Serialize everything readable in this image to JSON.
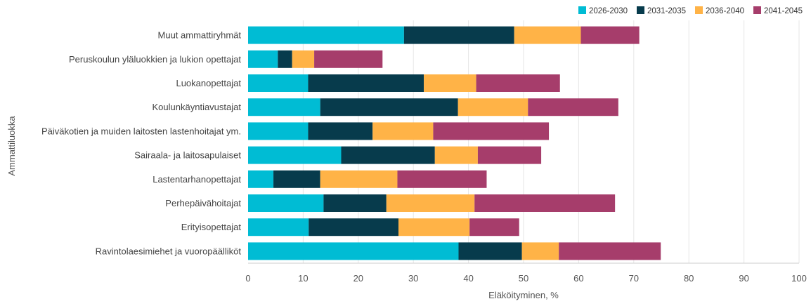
{
  "chart_data": {
    "type": "bar",
    "orientation": "horizontal",
    "stacked": true,
    "xlabel": "Eläköityminen, %",
    "ylabel": "Ammattiluokka",
    "xlim": [
      0,
      100
    ],
    "xticks": [
      0,
      10,
      20,
      30,
      40,
      50,
      60,
      70,
      80,
      90,
      100
    ],
    "grid": true,
    "legend_position": "top-right",
    "categories": [
      "Muut ammattiryhmät",
      "Peruskoulun yläluokkien ja lukion opettajat",
      "Luokanopettajat",
      "Koulunkäyntiavustajat",
      "Päiväkotien ja muiden laitosten lastenhoitajat ym.",
      "Sairaala- ja laitosapulaiset",
      "Lastentarhanopettajat",
      "Perhepäivähoitajat",
      "Erityisopettajat",
      "Ravintolaesimiehet ja vuoropäälliköt"
    ],
    "series": [
      {
        "name": "2026-2030",
        "color": "#00bcd4",
        "values": [
          28.3,
          5.4,
          10.9,
          13.1,
          10.9,
          16.9,
          4.6,
          13.7,
          11.0,
          38.2
        ]
      },
      {
        "name": "2031-2035",
        "color": "#073b4c",
        "values": [
          20.0,
          2.6,
          21.0,
          25.0,
          11.7,
          17.0,
          8.5,
          11.4,
          16.3,
          11.5
        ]
      },
      {
        "name": "2036-2040",
        "color": "#ffb347",
        "values": [
          12.1,
          4.0,
          9.5,
          12.7,
          11.0,
          7.8,
          14.0,
          16.0,
          12.9,
          6.7
        ]
      },
      {
        "name": "2041-2045",
        "color": "#a63d6b",
        "values": [
          10.6,
          12.4,
          15.2,
          16.4,
          21.0,
          11.5,
          16.2,
          25.5,
          9.0,
          18.5
        ]
      }
    ]
  }
}
